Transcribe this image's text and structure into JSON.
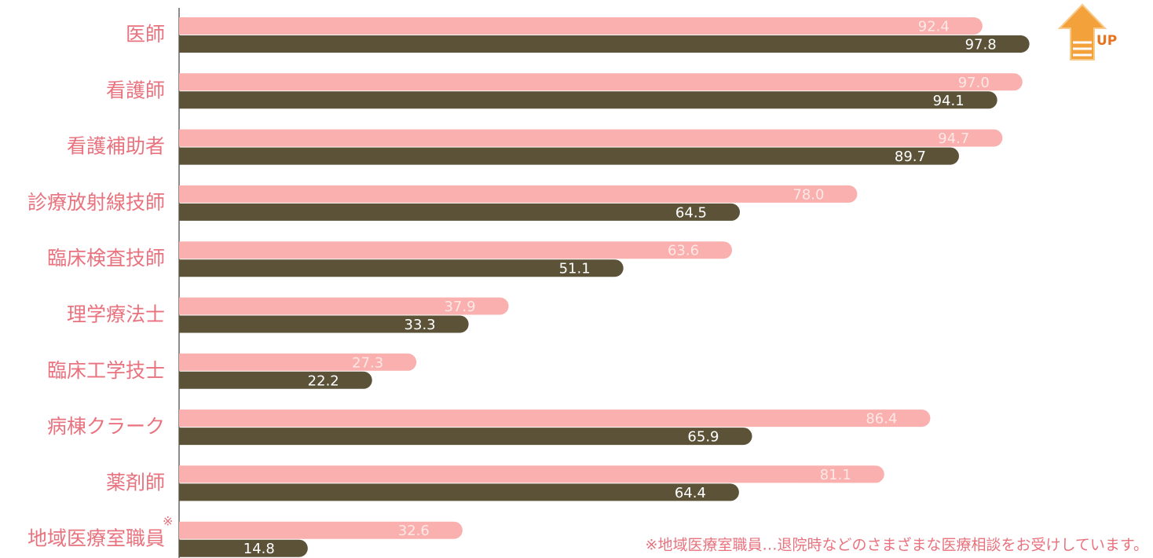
{
  "chart_data": {
    "type": "bar",
    "orientation": "horizontal",
    "categories": [
      "医師",
      "看護師",
      "看護補助者",
      "診療放射線技師",
      "臨床検査技師",
      "理学療法士",
      "臨床工学技士",
      "病棟クラーク",
      "薬剤師",
      "地域医療室職員"
    ],
    "series": [
      {
        "color": "#f9b0ae",
        "label_color": "#fde8e6",
        "values": [
          92.4,
          97.0,
          94.7,
          78.0,
          63.6,
          37.9,
          27.3,
          86.4,
          81.1,
          32.6
        ],
        "value_labels": [
          "92.4",
          "97.0",
          "94.7",
          "78.0",
          "63.6",
          "37.9",
          "27.3",
          "86.4",
          "81.1",
          "32.6"
        ]
      },
      {
        "color": "#5b5238",
        "label_color": "#ffffff",
        "values": [
          97.8,
          94.1,
          89.7,
          64.5,
          51.1,
          33.3,
          22.2,
          65.9,
          64.4,
          14.8
        ],
        "value_labels": [
          "97.8",
          "94.1",
          "89.7",
          "64.5",
          "51.1",
          "33.3",
          "22.2",
          "65.9",
          "64.4",
          "14.8"
        ]
      }
    ],
    "xlim": [
      0,
      100
    ],
    "badge": "UP",
    "footnote_marker": "※",
    "footnote": "※地域医療室職員…退院時などのさまざまな医療相談をお受けしています。"
  }
}
